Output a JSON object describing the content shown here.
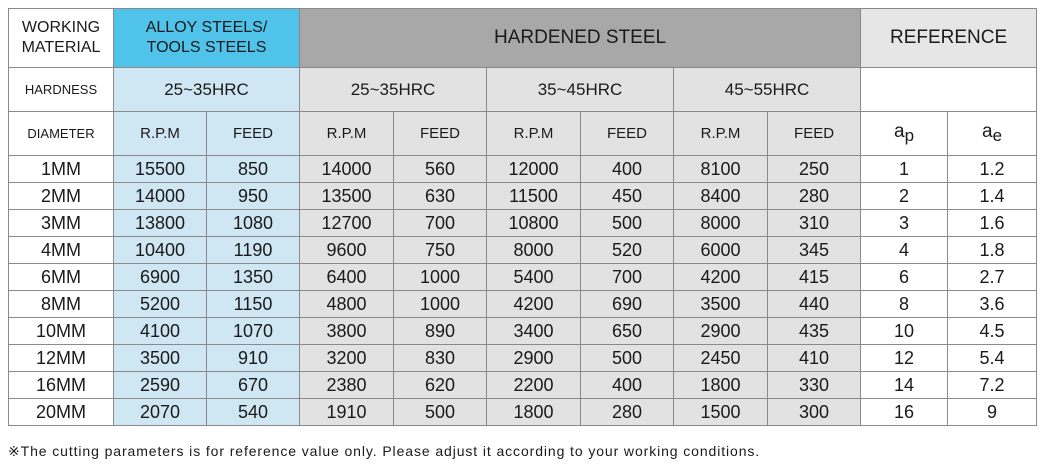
{
  "header": {
    "working_material_line1": "WORKING",
    "working_material_line2": "MATERIAL",
    "alloy_line1": "ALLOY STEELS/",
    "alloy_line2": "TOOLS STEELS",
    "hardened_steel": "HARDENED STEEL",
    "reference": "REFERENCE"
  },
  "hardness_row": {
    "label": "HARDNESS",
    "values": [
      "25~35HRC",
      "25~35HRC",
      "35~45HRC",
      "45~55HRC"
    ]
  },
  "diameter_row": {
    "label": "DIAMETER",
    "rpm": "R.P.M",
    "feed": "FEED",
    "ap_base": "a",
    "ap_sub": "p",
    "ae_base": "a",
    "ae_sub": "e"
  },
  "rows": [
    {
      "d": "1MM",
      "v": [
        "15500",
        "850",
        "14000",
        "560",
        "12000",
        "400",
        "8100",
        "250",
        "1",
        "1.2"
      ]
    },
    {
      "d": "2MM",
      "v": [
        "14000",
        "950",
        "13500",
        "630",
        "11500",
        "450",
        "8400",
        "280",
        "2",
        "1.4"
      ]
    },
    {
      "d": "3MM",
      "v": [
        "13800",
        "1080",
        "12700",
        "700",
        "10800",
        "500",
        "8000",
        "310",
        "3",
        "1.6"
      ]
    },
    {
      "d": "4MM",
      "v": [
        "10400",
        "1190",
        "9600",
        "750",
        "8000",
        "520",
        "6000",
        "345",
        "4",
        "1.8"
      ]
    },
    {
      "d": "6MM",
      "v": [
        "6900",
        "1350",
        "6400",
        "1000",
        "5400",
        "700",
        "4200",
        "415",
        "6",
        "2.7"
      ]
    },
    {
      "d": "8MM",
      "v": [
        "5200",
        "1150",
        "4800",
        "1000",
        "4200",
        "690",
        "3500",
        "440",
        "8",
        "3.6"
      ]
    },
    {
      "d": "10MM",
      "v": [
        "4100",
        "1070",
        "3800",
        "890",
        "3400",
        "650",
        "2900",
        "435",
        "10",
        "4.5"
      ]
    },
    {
      "d": "12MM",
      "v": [
        "3500",
        "910",
        "3200",
        "830",
        "2900",
        "500",
        "2450",
        "410",
        "12",
        "5.4"
      ]
    },
    {
      "d": "16MM",
      "v": [
        "2590",
        "670",
        "2380",
        "620",
        "2200",
        "400",
        "1800",
        "330",
        "14",
        "7.2"
      ]
    },
    {
      "d": "20MM",
      "v": [
        "2070",
        "540",
        "1910",
        "500",
        "1800",
        "280",
        "1500",
        "300",
        "16",
        "9"
      ]
    }
  ],
  "note": "※The cutting parameters is for reference value only. Please adjust it according to your working conditions.",
  "colors": {
    "alloy_header": "#4fc3ea",
    "alloy_body": "#cfe6f3",
    "hardened_header": "#a8a8a8",
    "hardened_body": "#e2e2e2"
  }
}
